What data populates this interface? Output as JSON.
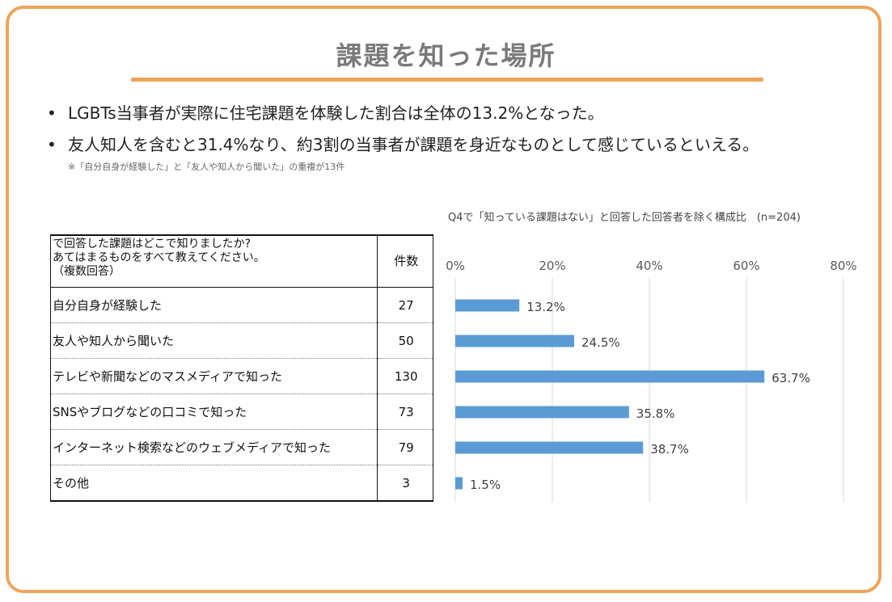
{
  "title": "課題を知った場所",
  "bullets": [
    "LGBTs当事者が実際に住宅課題を体験した割合は全体の13.2%となった。",
    "友人知人を含むと31.4%なり、約3割の当事者が課題を身近なものとして感じているといえる。"
  ],
  "note": "※「自分自身が経験した」と「友人や知人から聞いた」の重複が13件",
  "chart_note": "Q4で「知っている課題はない」と回答した回答者を除く構成比　(n=204)",
  "colors": {
    "accent": "#eea45a",
    "bar": "#5b9bd5"
  },
  "table": {
    "header_question": [
      "で回答した課題はどこで知りましたか?",
      "あてはまるものをすべて教えてください。",
      "（複数回答）"
    ],
    "header_count": "件数",
    "rows": [
      {
        "label": "自分自身が経験した",
        "count": "27"
      },
      {
        "label": "友人や知人から聞いた",
        "count": "50"
      },
      {
        "label": "テレビや新聞などのマスメディアで知った",
        "count": "130"
      },
      {
        "label": "SNSやブログなどの口コミで知った",
        "count": "73"
      },
      {
        "label": "インターネット検索などのウェブメディアで知った",
        "count": "79"
      },
      {
        "label": "その他",
        "count": "3"
      }
    ]
  },
  "chart_data": {
    "type": "bar",
    "orientation": "horizontal",
    "categories": [
      "自分自身が経験した",
      "友人や知人から聞いた",
      "テレビや新聞などのマスメディアで知った",
      "SNSやブログなどの口コミで知った",
      "インターネット検索などのウェブメディアで知った",
      "その他"
    ],
    "values": [
      13.2,
      24.5,
      63.7,
      35.8,
      38.7,
      1.5
    ],
    "data_labels": [
      "13.2%",
      "24.5%",
      "63.7%",
      "35.8%",
      "38.7%",
      "1.5%"
    ],
    "xlim": [
      0,
      80
    ],
    "ticks": [
      "0%",
      "20%",
      "40%",
      "60%",
      "80%"
    ],
    "tick_values": [
      0,
      20,
      40,
      60,
      80
    ],
    "axis_position": "top",
    "grid": true
  }
}
